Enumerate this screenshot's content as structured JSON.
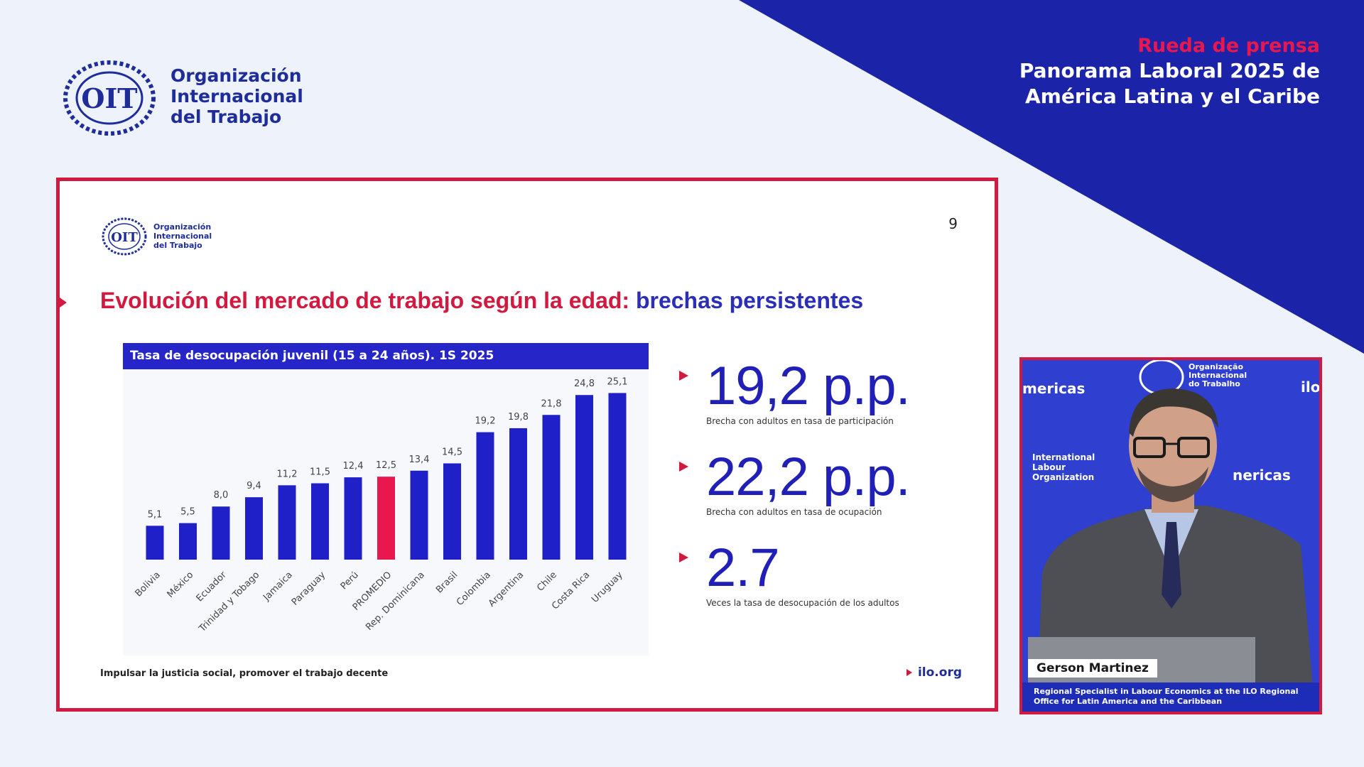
{
  "colors": {
    "navy": "#1b24a8",
    "accent_red": "#d2193f",
    "bar_blue": "#2020c8",
    "bar_highlight": "#e8174e",
    "background": "#eef2fa"
  },
  "header": {
    "logo_icon": "ilo-emblem-icon",
    "org_lines": [
      "Organización",
      "Internacional",
      "del Trabajo"
    ]
  },
  "press": {
    "kicker": "Rueda de prensa",
    "title_lines": [
      "Panorama Laboral 2025 de",
      "América Latina y el Caribe"
    ]
  },
  "slide": {
    "org_lines": [
      "Organización",
      "Internacional",
      "del Trabajo"
    ],
    "page_number": "9",
    "title_red": "Evolución del mercado de trabajo según la edad:",
    "title_blue": "brechas persistentes",
    "chart_header": "Tasa de desocupación juvenil (15 a 24 años). 1S 2025",
    "stats": [
      {
        "value": "19,2 p.p.",
        "caption": "Brecha con adultos en tasa de participación"
      },
      {
        "value": "22,2 p.p.",
        "caption": "Brecha con adultos en tasa de ocupación"
      },
      {
        "value": "2.7",
        "caption": "Veces la tasa de desocupación de los adultos"
      }
    ],
    "footer_left": "Impulsar la justicia social, promover el trabajo decente",
    "footer_right": "ilo.org"
  },
  "chart_data": {
    "type": "bar",
    "title": "Tasa de desocupación juvenil (15 a 24 años). 1S 2025",
    "categories": [
      "Bolivia",
      "México",
      "Ecuador",
      "Trinidad y Tobago",
      "Jamaica",
      "Paraguay",
      "Perú",
      "PROMEDIO",
      "Rep. Dominicana",
      "Brasil",
      "Colombia",
      "Argentina",
      "Chile",
      "Costa Rica",
      "Uruguay"
    ],
    "values": [
      5.1,
      5.5,
      8.0,
      9.4,
      11.2,
      11.5,
      12.4,
      12.5,
      13.4,
      14.5,
      19.2,
      19.8,
      21.8,
      24.8,
      25.1
    ],
    "value_labels": [
      "5,1",
      "5,5",
      "8,0",
      "9,4",
      "11,2",
      "11,5",
      "12,4",
      "12,5",
      "13,4",
      "14,5",
      "19,2",
      "19,8",
      "21,8",
      "24,8",
      "25,1"
    ],
    "highlight_category": "PROMEDIO",
    "ylim": [
      0,
      26
    ],
    "grid": false,
    "legend": "none"
  },
  "video": {
    "speaker_name": "Gerson Martinez",
    "role_lines": [
      "Regional Specialist in Labour Economics at the ILO Regional",
      "Office for Latin America and the Caribbean"
    ],
    "backdrop": {
      "left_word": "mericas",
      "right_word": "nericas",
      "org_lines": [
        "International",
        "Labour",
        "Organization"
      ],
      "pt_lines": [
        "Organização",
        "Internacional",
        "do Trabalho"
      ],
      "corner_text": "ilo"
    }
  }
}
